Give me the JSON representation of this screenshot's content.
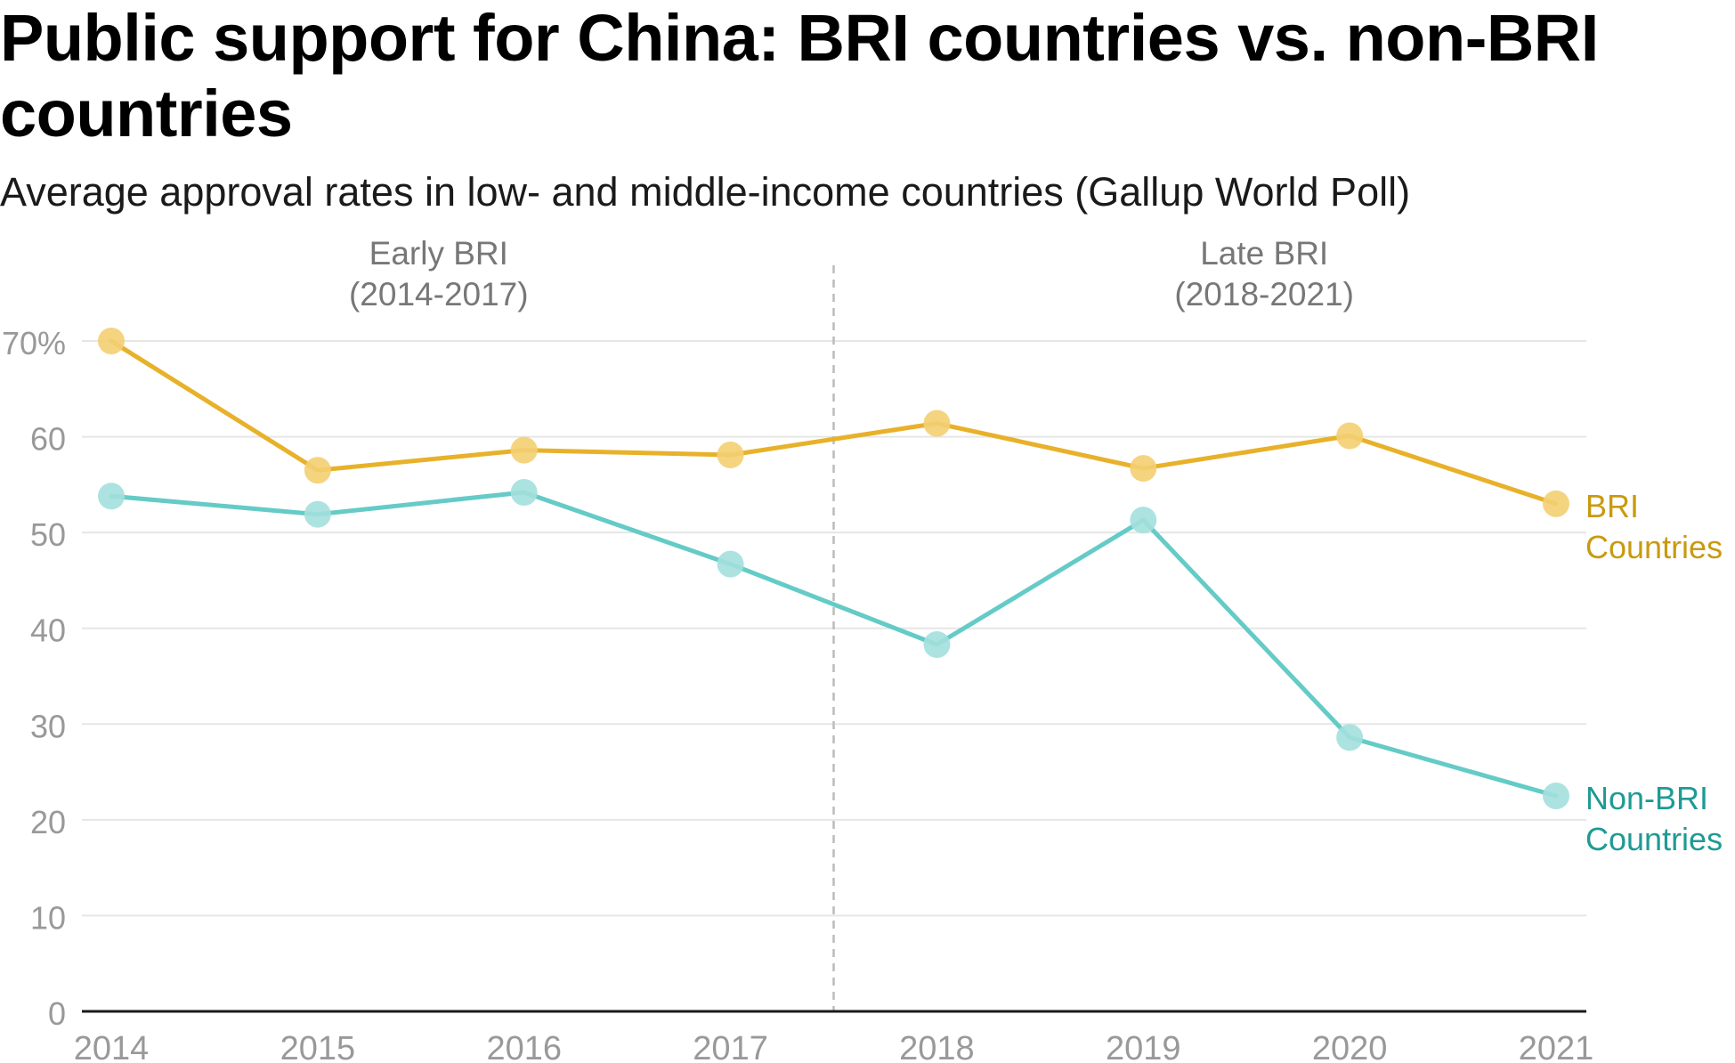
{
  "title": "Public support for China: BRI countries vs. non-BRI countries",
  "subtitle": "Average approval rates in low- and middle-income countries (Gallup World Poll)",
  "colors": {
    "bri_line": "#e8b12a",
    "bri_point": "#f4cf72",
    "bri_label": "#c99a10",
    "nonbri_line": "#64cbc6",
    "nonbri_point": "#a3e0dd",
    "nonbri_label": "#1f9a94",
    "grid": "#e6e6e6",
    "axis": "#1a1a1a",
    "tick_label": "#999999",
    "period_label": "#777777",
    "divider": "#bbbbbb"
  },
  "chart_data": {
    "type": "line",
    "x": [
      "2014",
      "2015",
      "2016",
      "2017",
      "2018",
      "2019",
      "2020",
      "2021"
    ],
    "series": [
      {
        "name": "BRI Countries",
        "label_lines": [
          "BRI",
          "Countries"
        ],
        "color": "#e8b12a",
        "values": [
          70.0,
          56.5,
          58.6,
          58.1,
          61.4,
          56.7,
          60.1,
          53.0
        ]
      },
      {
        "name": "Non-BRI Countries",
        "label_lines": [
          "Non-BRI",
          "Countries"
        ],
        "color": "#64cbc6",
        "values": [
          53.8,
          51.9,
          54.2,
          46.7,
          38.3,
          51.3,
          28.6,
          22.5
        ]
      }
    ],
    "ylim": [
      0,
      70
    ],
    "yticks": [
      0,
      10,
      20,
      30,
      40,
      50,
      60,
      70
    ],
    "ytick_labels": [
      "0",
      "10",
      "20",
      "30",
      "40",
      "50",
      "60",
      "70%"
    ],
    "grid": true,
    "legend": "direct labels at line ends",
    "divider": {
      "between": [
        "2017",
        "2018"
      ],
      "style": "dashed"
    },
    "periods": [
      {
        "lines": [
          "Early BRI",
          "(2014-2017)"
        ],
        "from": "2014",
        "to": "2017"
      },
      {
        "lines": [
          "Late BRI",
          "(2018-2021)"
        ],
        "from": "2018",
        "to": "2021"
      }
    ]
  }
}
